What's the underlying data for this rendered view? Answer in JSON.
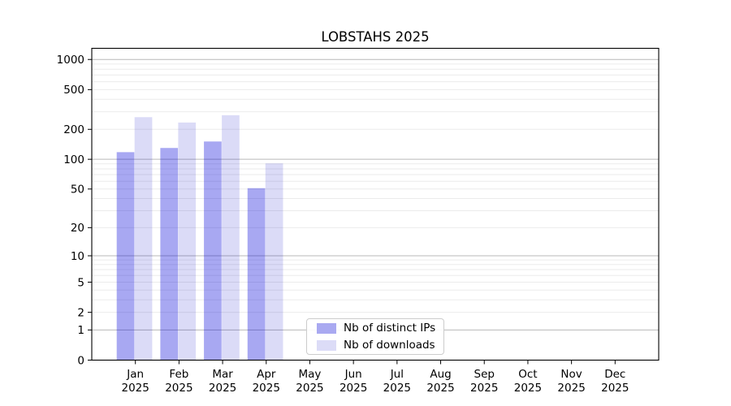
{
  "title": "LOBSTAHS 2025",
  "chart_data": {
    "type": "bar",
    "title": "LOBSTAHS 2025",
    "categories": [
      "Jan",
      "Feb",
      "Mar",
      "Apr",
      "May",
      "Jun",
      "Jul",
      "Aug",
      "Sep",
      "Oct",
      "Nov",
      "Dec"
    ],
    "year": "2025",
    "series": [
      {
        "name": "Nb of distinct IPs",
        "color": "rgba(0,0,216,0.34)",
        "legend_color": "#a9a9f1",
        "values": [
          118,
          130,
          151,
          51,
          0,
          0,
          0,
          0,
          0,
          0,
          0,
          0
        ]
      },
      {
        "name": "Nb of downloads",
        "color": "rgba(0,0,197,0.14)",
        "legend_color": "#dcdcf7",
        "values": [
          265,
          234,
          277,
          91,
          0,
          0,
          0,
          0,
          0,
          0,
          0,
          0
        ]
      }
    ],
    "yscale": "log1p",
    "yticks": [
      0,
      1,
      2,
      5,
      10,
      20,
      50,
      100,
      200,
      500,
      1000
    ],
    "ylim": [
      0,
      1300
    ],
    "xlabel": "",
    "ylabel": "",
    "grid": true,
    "grid_decade_lines": [
      1,
      10,
      100,
      1000
    ],
    "grid_major_color": "#b9b9b9",
    "grid_minor_color": "#ebebeb",
    "axis_color": "#000000",
    "legend_position": "lower-center"
  }
}
